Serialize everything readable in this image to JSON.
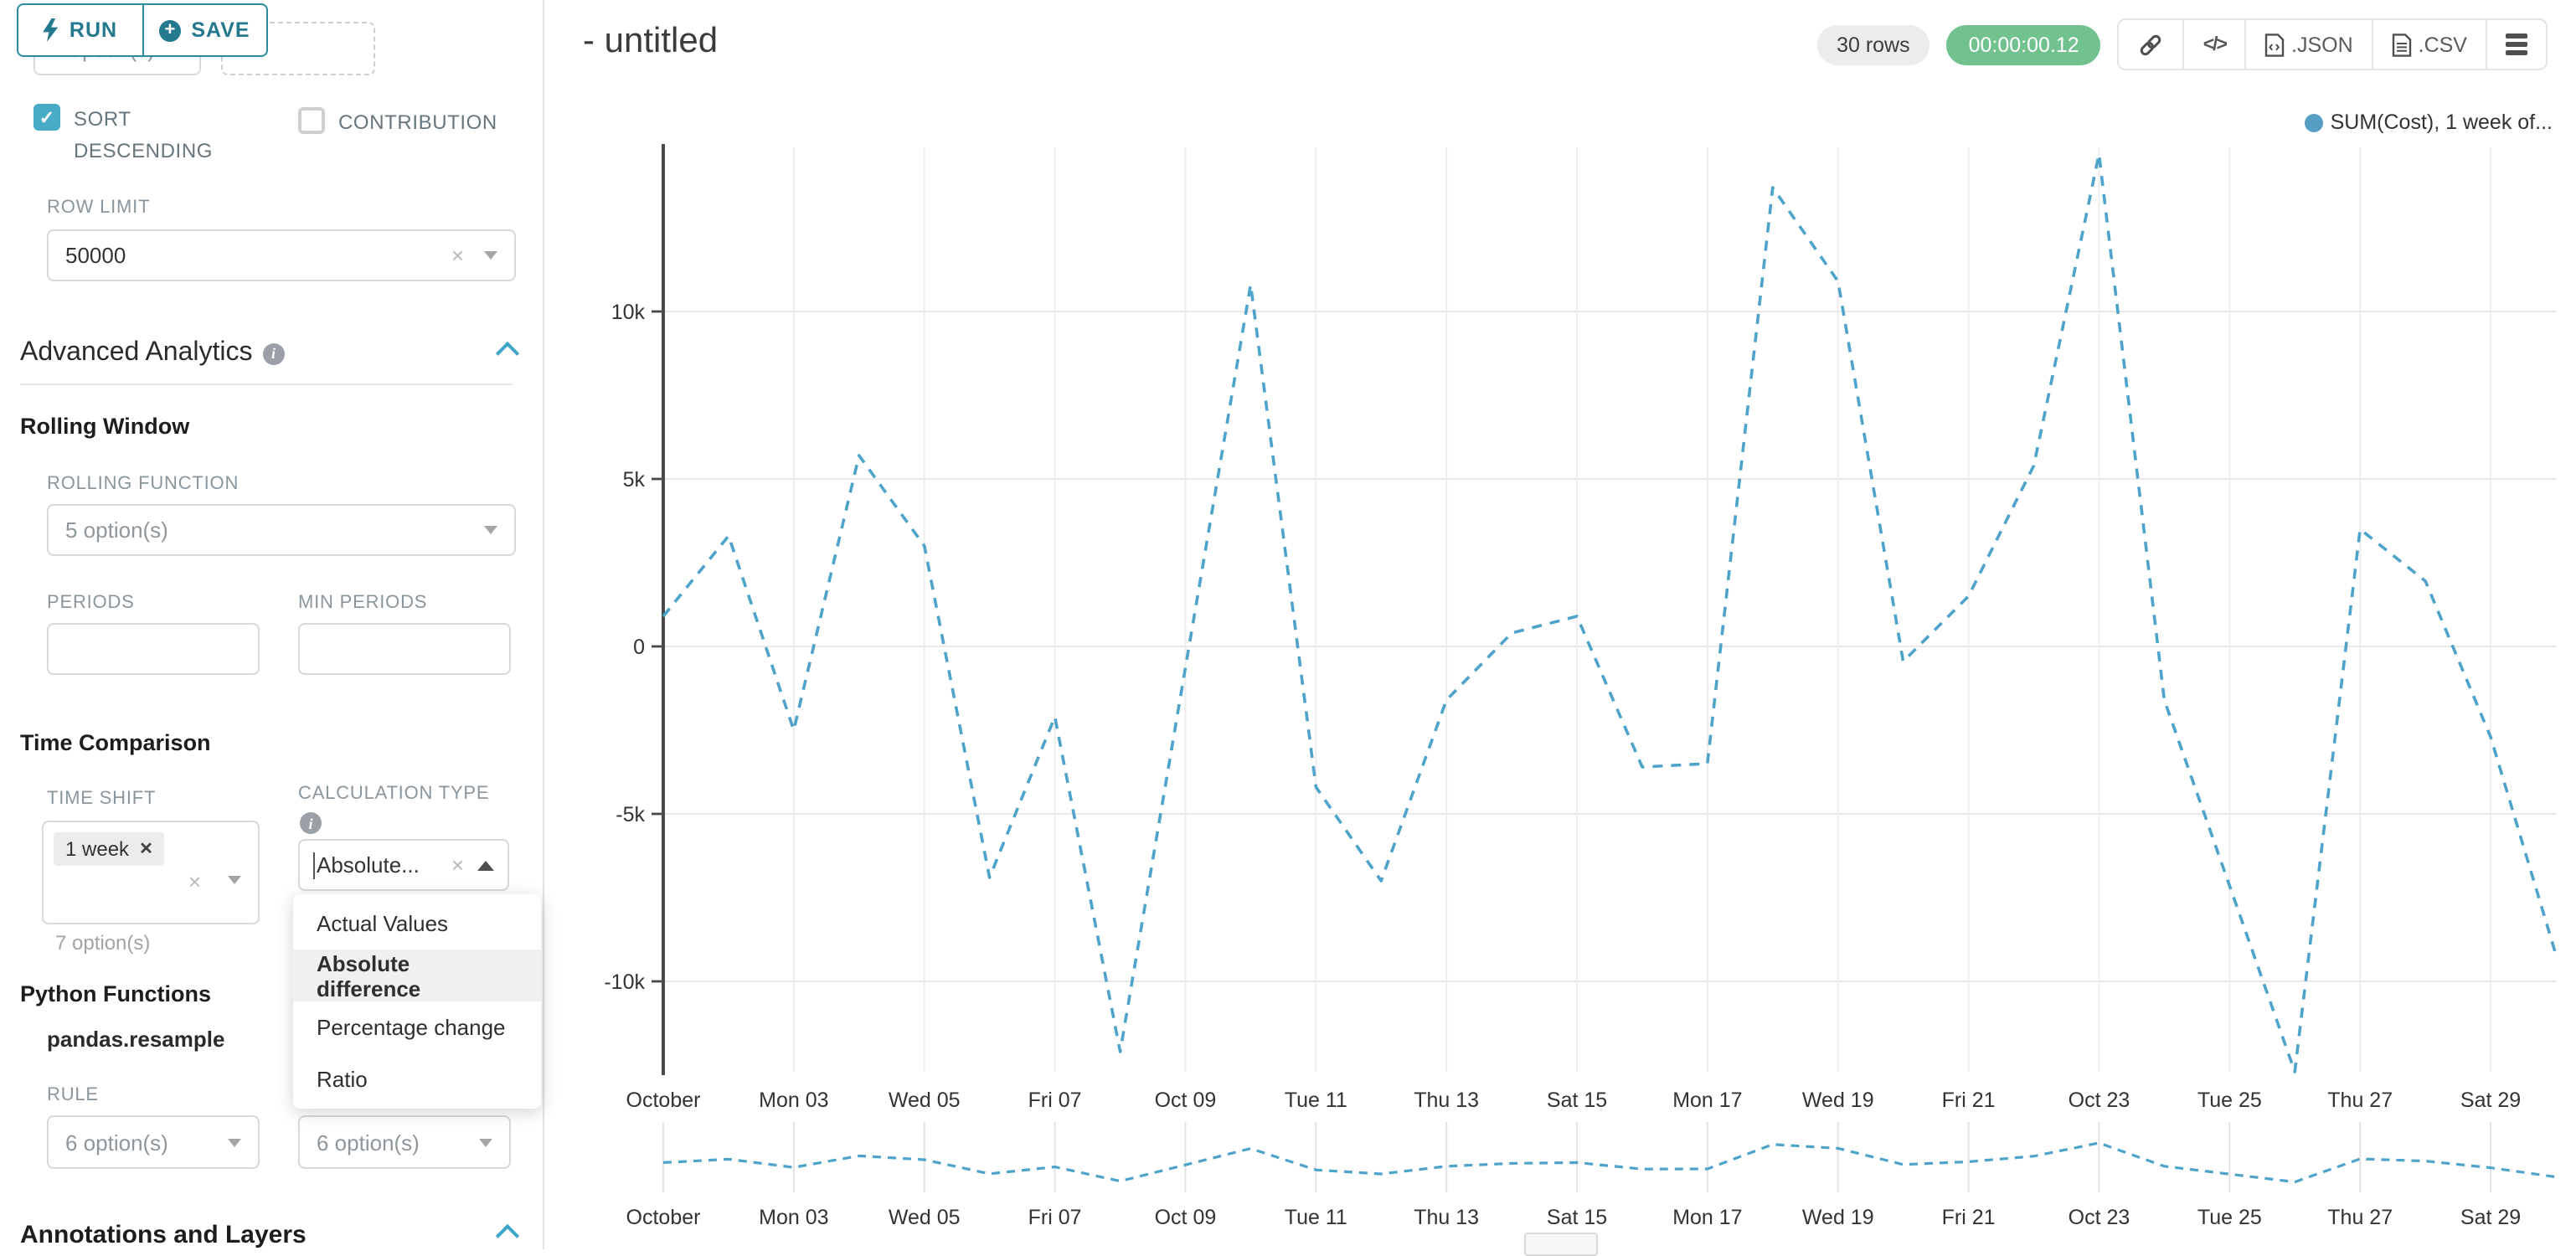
{
  "toolbar": {
    "run_label": "RUN",
    "save_label": "SAVE"
  },
  "sidebar": {
    "hidden_select_value": "7 option(s)",
    "sort_descending_label": "SORT DESCENDING",
    "contribution_label": "CONTRIBUTION",
    "row_limit": {
      "label": "ROW LIMIT",
      "value": "50000"
    },
    "advanced_analytics_title": "Advanced Analytics",
    "rolling_window": {
      "title": "Rolling Window",
      "rolling_function_label": "ROLLING FUNCTION",
      "rolling_function_value": "5 option(s)",
      "periods_label": "PERIODS",
      "min_periods_label": "MIN PERIODS"
    },
    "time_comparison": {
      "title": "Time Comparison",
      "time_shift_label": "TIME SHIFT",
      "time_shift_tag": "1 week",
      "time_shift_placeholder": "7 option(s)",
      "calculation_type_label": "CALCULATION TYPE",
      "calculation_type_value": "Absolute...",
      "dropdown_options": [
        "Actual Values",
        "Absolute difference",
        "Percentage change",
        "Ratio"
      ],
      "selected_option": "Absolute difference"
    },
    "python_functions": {
      "title": "Python Functions",
      "subtitle": "pandas.resample",
      "rule_label": "RULE",
      "rule_value": "6 option(s)",
      "rule_value_2": "6 option(s)"
    },
    "annotations_title": "Annotations and Layers"
  },
  "header": {
    "title": "- untitled",
    "rows_badge": "30 rows",
    "timer_badge": "00:00:00.12",
    "export_json_label": ".JSON",
    "export_csv_label": ".CSV"
  },
  "colors": {
    "primary_teal": "#24798e",
    "checkbox_teal": "#48acc9",
    "badge_green": "#71c28e",
    "series_line": "#4da3c9",
    "legend_dot": "#569fc4"
  },
  "chart_data": {
    "type": "line",
    "title": "",
    "legend": [
      {
        "label": "SUM(Cost), 1 week of...",
        "color": "#569fc4",
        "line_style": "dashed"
      }
    ],
    "x": [
      "Oct 01",
      "Oct 02",
      "Oct 03",
      "Oct 04",
      "Oct 05",
      "Oct 06",
      "Oct 07",
      "Oct 08",
      "Oct 09",
      "Oct 10",
      "Oct 11",
      "Oct 12",
      "Oct 13",
      "Oct 14",
      "Oct 15",
      "Oct 16",
      "Oct 17",
      "Oct 18",
      "Oct 19",
      "Oct 20",
      "Oct 21",
      "Oct 22",
      "Oct 23",
      "Oct 24",
      "Oct 25",
      "Oct 26",
      "Oct 27",
      "Oct 28",
      "Oct 29",
      "Oct 30"
    ],
    "series": [
      {
        "name": "SUM(Cost), 1 week offset",
        "values": [
          900,
          3300,
          -2500,
          5700,
          3000,
          -6900,
          -2100,
          -12100,
          -650,
          10800,
          -4200,
          -7000,
          -1600,
          400,
          900,
          -3600,
          -3500,
          13700,
          10900,
          -450,
          1500,
          5400,
          14700,
          -1600,
          -7150,
          -12700,
          3500,
          1950,
          -2700,
          -9200
        ]
      }
    ],
    "x_tick_labels": [
      "October",
      "Mon 03",
      "Wed 05",
      "Fri 07",
      "Oct 09",
      "Tue 11",
      "Thu 13",
      "Sat 15",
      "Mon 17",
      "Wed 19",
      "Fri 21",
      "Oct 23",
      "Tue 25",
      "Thu 27",
      "Sat 29"
    ],
    "y_tick_labels": [
      "10k",
      "5k",
      "0",
      "-5k",
      "-10k"
    ],
    "y_tick_values": [
      10000,
      5000,
      0,
      -5000,
      -10000
    ],
    "ylim": [
      -13000,
      15000
    ],
    "grid": true,
    "legend_position": "top-right",
    "has_mini_preview": true
  }
}
